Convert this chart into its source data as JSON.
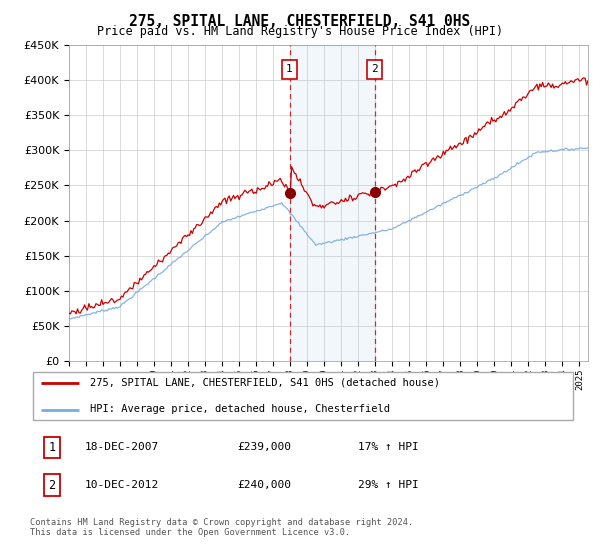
{
  "title": "275, SPITAL LANE, CHESTERFIELD, S41 0HS",
  "subtitle": "Price paid vs. HM Land Registry's House Price Index (HPI)",
  "legend_line1": "275, SPITAL LANE, CHESTERFIELD, S41 0HS (detached house)",
  "legend_line2": "HPI: Average price, detached house, Chesterfield",
  "annotation1_label": "1",
  "annotation1_date": "18-DEC-2007",
  "annotation1_price": "£239,000",
  "annotation1_hpi": "17% ↑ HPI",
  "annotation2_label": "2",
  "annotation2_date": "10-DEC-2012",
  "annotation2_price": "£240,000",
  "annotation2_hpi": "29% ↑ HPI",
  "footer": "Contains HM Land Registry data © Crown copyright and database right 2024.\nThis data is licensed under the Open Government Licence v3.0.",
  "red_color": "#cc0000",
  "blue_color": "#7aabe0",
  "sale1_year": 2007.96,
  "sale2_year": 2012.96,
  "sale1_price": 239000,
  "sale2_price": 240000,
  "ylim_min": 0,
  "ylim_max": 450000,
  "xlim_min": 1995,
  "xlim_max": 2025.5,
  "background_color": "#ffffff",
  "grid_color": "#cccccc"
}
